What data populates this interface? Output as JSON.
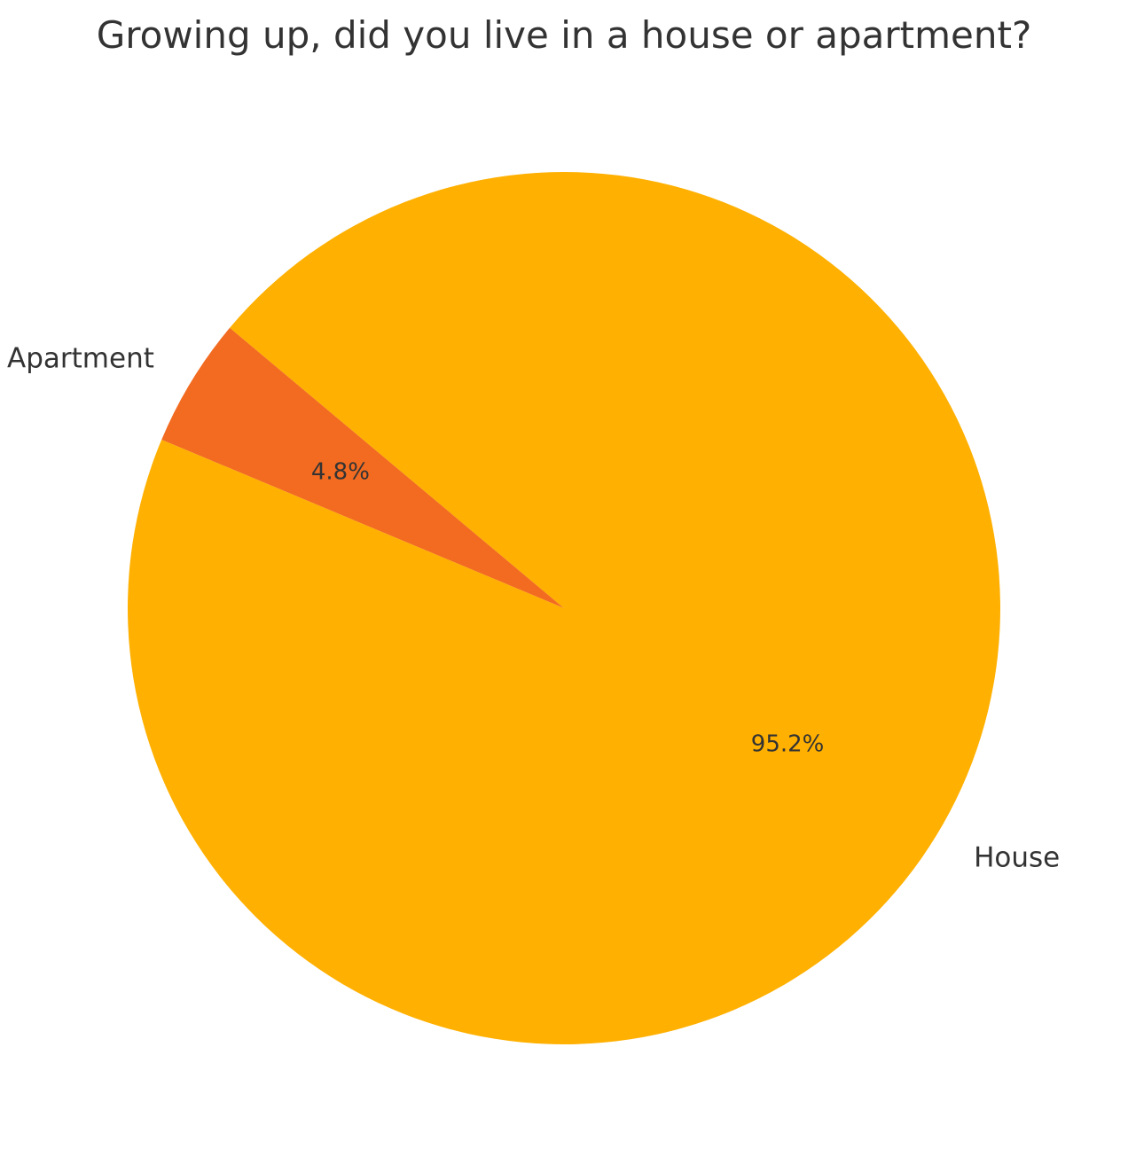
{
  "chart_data": {
    "type": "pie",
    "title": "Growing up, did you live in a house or apartment?",
    "slices": [
      {
        "label": "Apartment",
        "value": 4.8,
        "pct_label": "4.8%",
        "color": "#F26B21"
      },
      {
        "label": "House",
        "value": 95.2,
        "pct_label": "95.2%",
        "color": "#FFB000"
      }
    ],
    "start_angle_deg": 140,
    "direction": "counterclockwise",
    "legend": "none"
  }
}
